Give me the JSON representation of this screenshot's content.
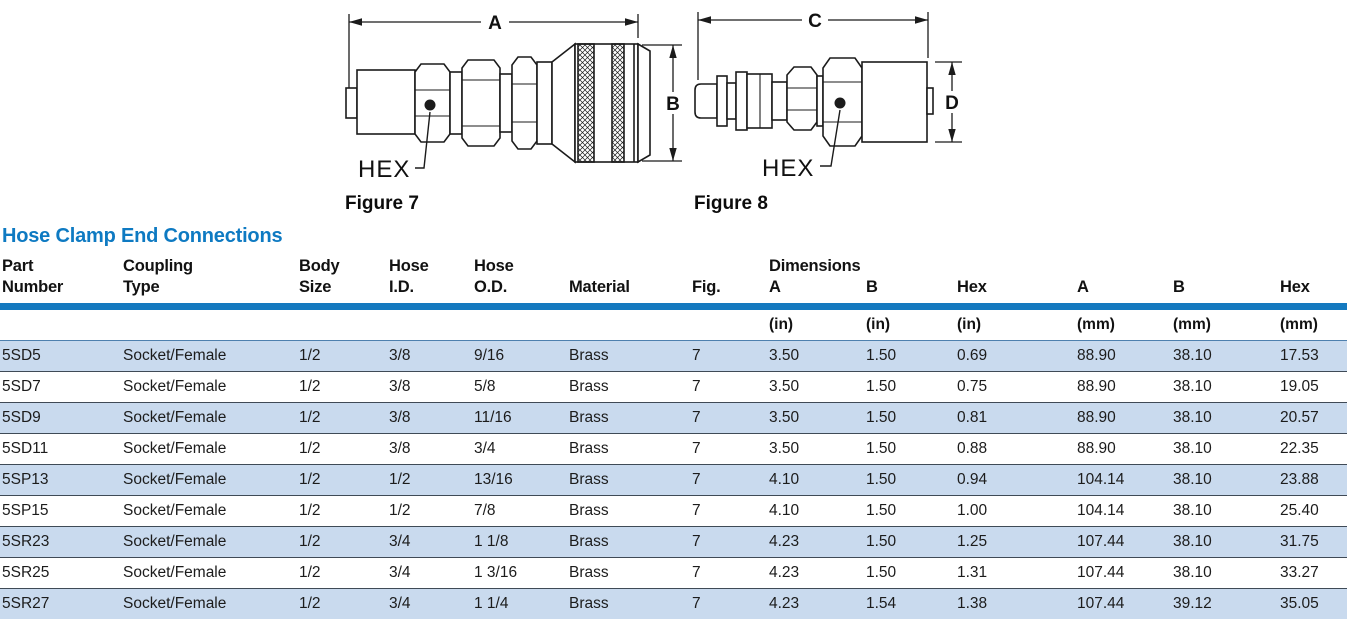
{
  "section": {
    "title": "Hose Clamp End Connections"
  },
  "figures": {
    "fig7": {
      "caption": "Figure 7",
      "dim_horizontal": "A",
      "dim_vertical": "B",
      "hex_label": "HEX"
    },
    "fig8": {
      "caption": "Figure 8",
      "dim_horizontal": "C",
      "dim_vertical": "D",
      "hex_label": "HEX"
    }
  },
  "table": {
    "dimensions_group_label": "Dimensions",
    "headers": [
      {
        "line1": "Part",
        "line2": "Number"
      },
      {
        "line1": "Coupling",
        "line2": "Type"
      },
      {
        "line1": "Body",
        "line2": "Size"
      },
      {
        "line1": "Hose",
        "line2": "I.D."
      },
      {
        "line1": "Hose",
        "line2": "O.D."
      },
      {
        "line1": "",
        "line2": "Material"
      },
      {
        "line1": "",
        "line2": "Fig."
      },
      {
        "line1": "Dimensions",
        "line2": "A"
      },
      {
        "line1": "",
        "line2": "B"
      },
      {
        "line1": "",
        "line2": "Hex"
      },
      {
        "line1": "",
        "line2": "A"
      },
      {
        "line1": "",
        "line2": "B"
      },
      {
        "line1": "",
        "line2": "Hex"
      }
    ],
    "units": [
      "",
      "",
      "",
      "",
      "",
      "",
      "",
      "(in)",
      "(in)",
      "(in)",
      "(mm)",
      "(mm)",
      "(mm)"
    ],
    "rows": [
      [
        "5SD5",
        "Socket/Female",
        "1/2",
        "3/8",
        "9/16",
        "Brass",
        "7",
        "3.50",
        "1.50",
        "0.69",
        "88.90",
        "38.10",
        "17.53"
      ],
      [
        "5SD7",
        "Socket/Female",
        "1/2",
        "3/8",
        "5/8",
        "Brass",
        "7",
        "3.50",
        "1.50",
        "0.75",
        "88.90",
        "38.10",
        "19.05"
      ],
      [
        "5SD9",
        "Socket/Female",
        "1/2",
        "3/8",
        "11/16",
        "Brass",
        "7",
        "3.50",
        "1.50",
        "0.81",
        "88.90",
        "38.10",
        "20.57"
      ],
      [
        "5SD11",
        "Socket/Female",
        "1/2",
        "3/8",
        "3/4",
        "Brass",
        "7",
        "3.50",
        "1.50",
        "0.88",
        "88.90",
        "38.10",
        "22.35"
      ],
      [
        "5SP13",
        "Socket/Female",
        "1/2",
        "1/2",
        "13/16",
        "Brass",
        "7",
        "4.10",
        "1.50",
        "0.94",
        "104.14",
        "38.10",
        "23.88"
      ],
      [
        "5SP15",
        "Socket/Female",
        "1/2",
        "1/2",
        "7/8",
        "Brass",
        "7",
        "4.10",
        "1.50",
        "1.00",
        "104.14",
        "38.10",
        "25.40"
      ],
      [
        "5SR23",
        "Socket/Female",
        "1/2",
        "3/4",
        "1 1/8",
        "Brass",
        "7",
        "4.23",
        "1.50",
        "1.25",
        "107.44",
        "38.10",
        "31.75"
      ],
      [
        "5SR25",
        "Socket/Female",
        "1/2",
        "3/4",
        "1 3/16",
        "Brass",
        "7",
        "4.23",
        "1.50",
        "1.31",
        "107.44",
        "38.10",
        "33.27"
      ],
      [
        "5SR27",
        "Socket/Female",
        "1/2",
        "3/4",
        "1 1/4",
        "Brass",
        "7",
        "4.23",
        "1.54",
        "1.38",
        "107.44",
        "39.12",
        "35.05"
      ]
    ]
  },
  "colors": {
    "title_blue": "#0e7ac2",
    "header_rule_blue": "#1479bf",
    "row_stripe_blue": "#c9daee",
    "row_separator": "#3f4a56",
    "text": "#1c1c1c"
  }
}
